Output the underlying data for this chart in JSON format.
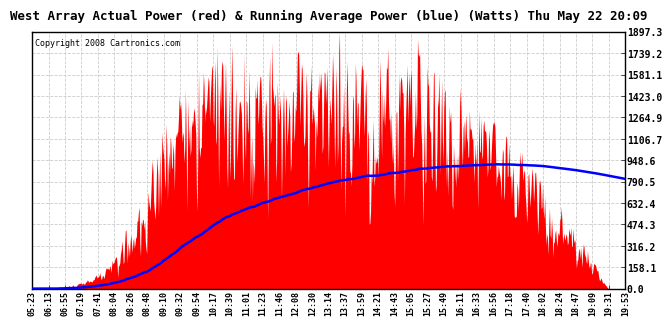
{
  "title": "West Array Actual Power (red) & Running Average Power (blue) (Watts) Thu May 22 20:09",
  "copyright": "Copyright 2008 Cartronics.com",
  "background_color": "#ffffff",
  "plot_bg_color": "#ffffff",
  "y_max": 1897.3,
  "y_min": 0.0,
  "y_ticks": [
    0.0,
    158.1,
    316.2,
    474.3,
    632.4,
    790.5,
    948.6,
    1106.7,
    1264.9,
    1423.0,
    1581.1,
    1739.2,
    1897.3
  ],
  "x_labels": [
    "05:23",
    "06:13",
    "06:55",
    "07:19",
    "07:41",
    "08:04",
    "08:26",
    "08:48",
    "09:10",
    "09:32",
    "09:54",
    "10:17",
    "10:39",
    "11:01",
    "11:23",
    "11:46",
    "12:08",
    "12:30",
    "13:14",
    "13:37",
    "13:59",
    "14:21",
    "14:43",
    "15:05",
    "15:27",
    "15:49",
    "16:11",
    "16:33",
    "16:56",
    "17:18",
    "17:40",
    "18:02",
    "18:24",
    "18:47",
    "19:09",
    "19:31",
    "19:53"
  ],
  "red_color": "#ff0000",
  "blue_color": "#0000ff",
  "grid_color": "#cccccc",
  "title_fontsize": 9,
  "tick_fontsize": 7,
  "xtick_fontsize": 6
}
